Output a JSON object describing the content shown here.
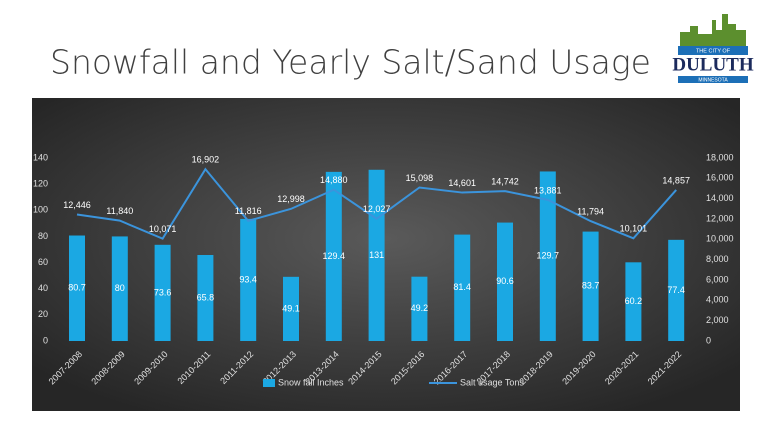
{
  "logo": {
    "top": "THE CITY OF",
    "name": "DULUTH",
    "bottom": "MINNESOTA"
  },
  "chart_data": {
    "type": "combo",
    "title": "Snowfall and Yearly Salt/Sand Usage",
    "categories": [
      "2007-2008",
      "2008-2009",
      "2009-2010",
      "2010-2011",
      "2011-2012",
      "2012-2013",
      "2013-2014",
      "2014-2015",
      "2015-2016",
      "2016-2017",
      "2017-2018",
      "2018-2019",
      "2019-2020",
      "2020-2021",
      "2021-2022"
    ],
    "series": [
      {
        "name": "Snow fall Inches",
        "type": "bar",
        "color": "#1ba8e3",
        "values": [
          80.7,
          80,
          73.6,
          65.8,
          93.4,
          49.1,
          129.4,
          131,
          49.2,
          81.4,
          90.6,
          129.7,
          83.7,
          60.2,
          77.4
        ]
      },
      {
        "name": "Salt usage Tons",
        "type": "line",
        "axis": "y2",
        "color": "#3b94dc",
        "values": [
          12446,
          11840,
          10071,
          16902,
          11816,
          12998,
          14880,
          12027,
          15098,
          14601,
          14742,
          13881,
          11794,
          10101,
          14857
        ],
        "value_labels": [
          "12,446",
          "11,840",
          "10,071",
          "16,902",
          "11,816",
          "12,998",
          "14,880",
          "12,027",
          "15,098",
          "14,601",
          "14,742",
          "13,881",
          "11,794",
          "10,101",
          "14,857"
        ]
      }
    ],
    "ylim": [
      0,
      140
    ],
    "yticks": [
      0,
      20,
      40,
      60,
      80,
      100,
      120,
      140
    ],
    "y2lim": [
      0,
      18000
    ],
    "y2ticks": [
      0,
      {
        "value": 2000,
        "label": "2,000"
      },
      {
        "value": 4000,
        "label": "4,000"
      },
      {
        "value": 6000,
        "label": "6,000"
      },
      {
        "value": 8000,
        "label": "8,000"
      },
      {
        "value": 10000,
        "label": "10,000"
      },
      {
        "value": 12000,
        "label": "12,000"
      },
      {
        "value": 14000,
        "label": "14,000"
      },
      {
        "value": 16000,
        "label": "16,000"
      },
      {
        "value": 18000,
        "label": "18,000"
      }
    ],
    "legend": "bottom"
  }
}
